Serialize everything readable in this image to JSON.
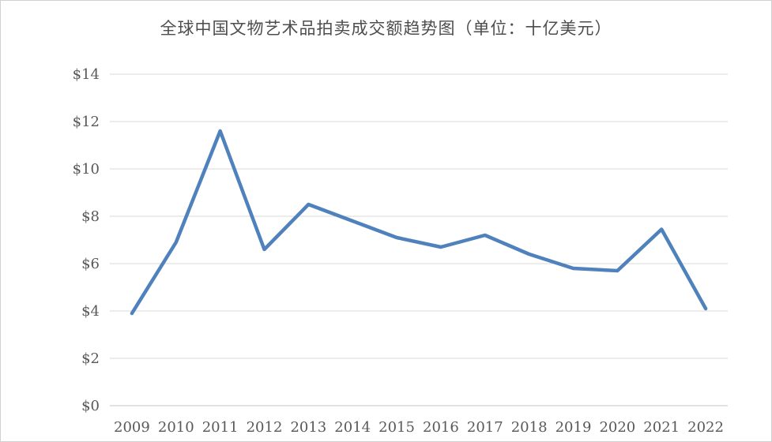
{
  "chart_data": {
    "type": "line",
    "title": "全球中国文物艺术品拍卖成交额趋势图（单位：十亿美元）",
    "categories": [
      "2009",
      "2010",
      "2011",
      "2012",
      "2013",
      "2014",
      "2015",
      "2016",
      "2017",
      "2018",
      "2019",
      "2020",
      "2021",
      "2022"
    ],
    "values": [
      3.9,
      6.9,
      11.6,
      6.6,
      8.5,
      7.8,
      7.1,
      6.7,
      7.2,
      6.4,
      5.8,
      5.7,
      7.45,
      4.1
    ],
    "xlabel": "",
    "ylabel": "",
    "ylim": [
      0,
      14
    ],
    "y_ticks": [
      {
        "value": 0,
        "label": "$0"
      },
      {
        "value": 2,
        "label": "$2"
      },
      {
        "value": 4,
        "label": "$4"
      },
      {
        "value": 6,
        "label": "$6"
      },
      {
        "value": 8,
        "label": "$8"
      },
      {
        "value": 10,
        "label": "$10"
      },
      {
        "value": 12,
        "label": "$12"
      },
      {
        "value": 14,
        "label": "$14"
      }
    ],
    "grid": true,
    "legend": "none"
  },
  "colors": {
    "line": "#4F81BD",
    "gridline": "#D9D9D9",
    "axis_line": "#C6C6C6",
    "axis_label": "#595959",
    "title": "#4D4D4D",
    "background": "#FFFFFF",
    "frame_border": "#D0D0D0"
  }
}
